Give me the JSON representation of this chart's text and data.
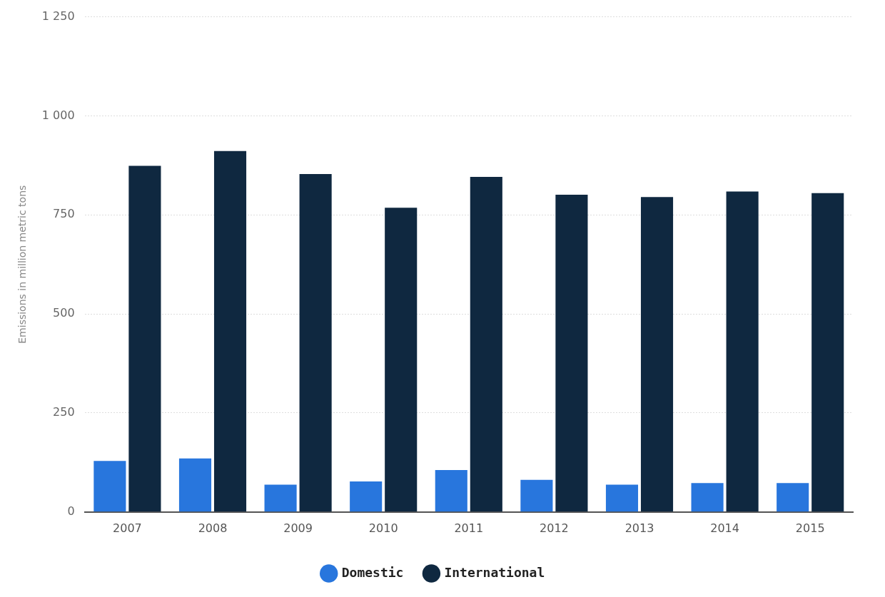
{
  "chart_data": {
    "type": "bar",
    "ylabel": "Emissions in million metric tons",
    "categories": [
      "2007",
      "2008",
      "2009",
      "2010",
      "2011",
      "2012",
      "2013",
      "2014",
      "2015"
    ],
    "series": [
      {
        "name": "Domestic",
        "color": "#2876dd",
        "values": [
          129,
          135,
          69,
          77,
          106,
          81,
          69,
          73,
          73
        ]
      },
      {
        "name": "International",
        "color": "#0f2840",
        "values": [
          874,
          911,
          853,
          768,
          846,
          801,
          795,
          809,
          805
        ]
      }
    ],
    "ylim": [
      0,
      1250
    ],
    "yticks": [
      0,
      250,
      500,
      750,
      {
        "value": 1000,
        "label": "1 000"
      },
      {
        "value": 1250,
        "label": "1 250"
      }
    ],
    "grid": "y",
    "legend": "bottom"
  }
}
